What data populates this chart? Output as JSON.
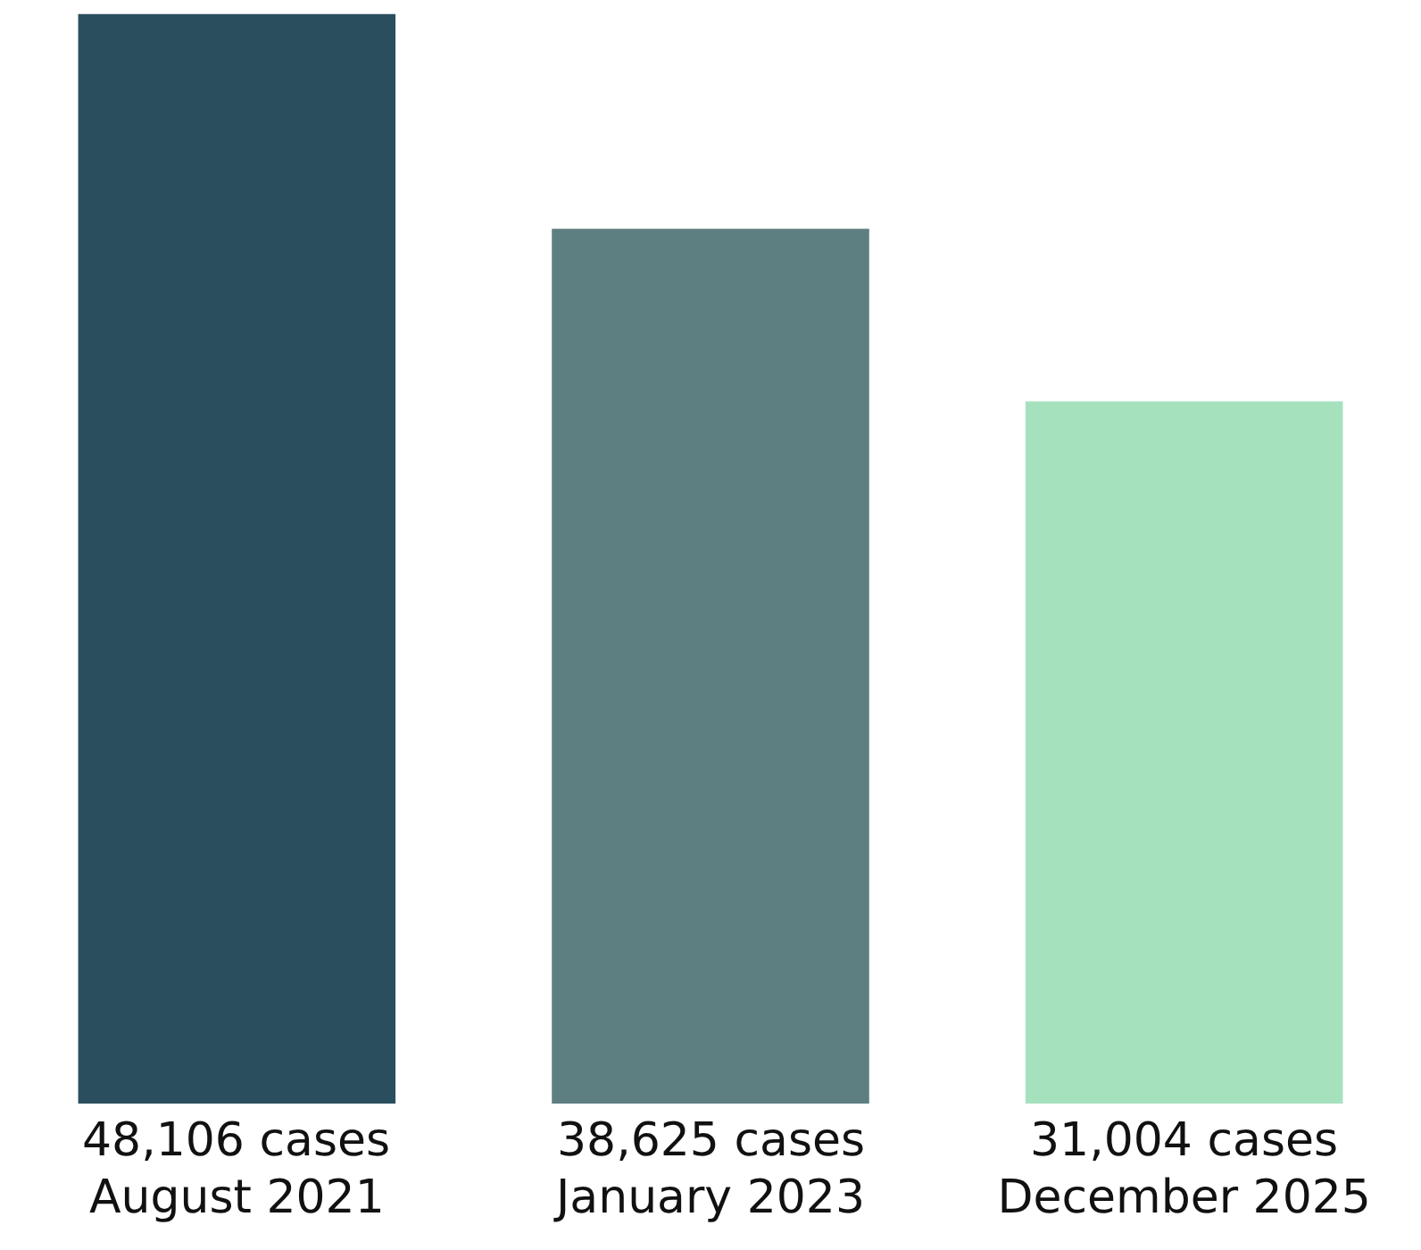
{
  "chart_data": {
    "type": "bar",
    "categories": [
      "August 2021",
      "January 2023",
      "December 2025"
    ],
    "values": [
      48106,
      38625,
      31004
    ],
    "colors": [
      "#2b4e5e",
      "#5e7f81",
      "#a6e1be"
    ],
    "value_labels": [
      "48,106 cases",
      "38,625 cases",
      "31,004 cases"
    ],
    "grid": false,
    "legend": false
  }
}
